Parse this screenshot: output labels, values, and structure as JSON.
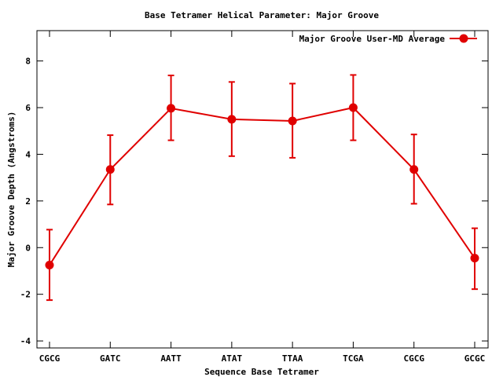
{
  "chart_data": {
    "type": "line",
    "title": "Base Tetramer Helical Parameter: Major Groove",
    "xlabel": "Sequence Base Tetramer",
    "ylabel": "Major Groove Depth (Angstroms)",
    "categories": [
      "CGCG",
      "GATC",
      "AATT",
      "ATAT",
      "TTAA",
      "TCGA",
      "CGCG",
      "GCGC"
    ],
    "ylim": [
      -4.3,
      9.3
    ],
    "yticks": [
      -4,
      -2,
      0,
      2,
      4,
      6,
      8
    ],
    "grid": false,
    "legend_position": "top-right",
    "series": [
      {
        "name": "Major Groove User-MD Average",
        "color": "#e00000",
        "values": [
          -0.75,
          3.35,
          5.97,
          5.5,
          5.43,
          6.0,
          3.35,
          -0.45
        ],
        "error_low": [
          -2.25,
          1.85,
          4.6,
          3.92,
          3.85,
          4.6,
          1.88,
          -1.78
        ],
        "error_high": [
          0.77,
          4.82,
          7.38,
          7.1,
          7.03,
          7.4,
          4.85,
          0.83
        ]
      }
    ]
  }
}
